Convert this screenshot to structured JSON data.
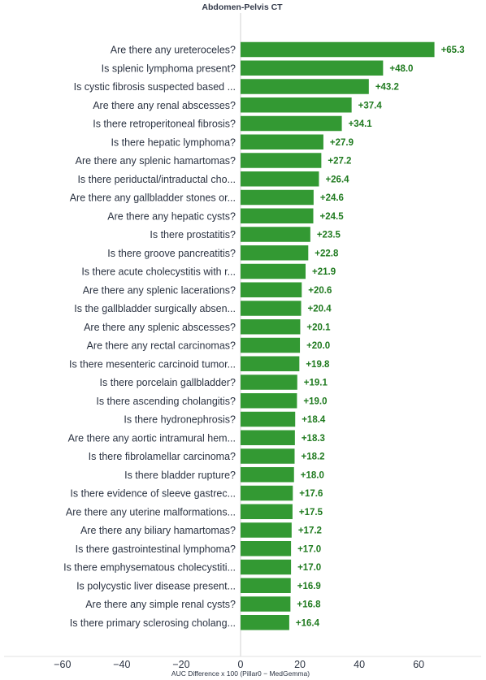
{
  "chart_data": {
    "type": "bar",
    "orientation": "horizontal",
    "title": "Abdomen-Pelvis CT",
    "xlabel": "AUC Difference x 100 (Pillar0 − MedGemma)",
    "xlim": [
      -75,
      75
    ],
    "xticks": [
      -60,
      -40,
      -20,
      0,
      20,
      40,
      60
    ],
    "xtick_labels": [
      "−60",
      "−40",
      "−20",
      "0",
      "20",
      "40",
      "60"
    ],
    "bar_color": "#339933",
    "label_color": "#1f7a1f",
    "categories": [
      "Are there any ureteroceles?",
      "Is splenic lymphoma present?",
      "Is cystic fibrosis suspected based ...",
      "Are there any renal abscesses?",
      "Is there retroperitoneal fibrosis?",
      "Is there hepatic lymphoma?",
      "Are there any splenic hamartomas?",
      "Is there periductal/intraductal cho...",
      "Are there any gallbladder stones or...",
      "Are there any hepatic cysts?",
      "Is there prostatitis?",
      "Is there groove pancreatitis?",
      "Is there acute cholecystitis with r...",
      "Are there any splenic lacerations?",
      "Is the gallbladder surgically absen...",
      "Are there any splenic abscesses?",
      "Are there any rectal carcinomas?",
      "Is there mesenteric carcinoid tumor...",
      "Is there porcelain gallbladder?",
      "Is there ascending cholangitis?",
      "Is there hydronephrosis?",
      "Are there any aortic intramural hem...",
      "Is there fibrolamellar carcinoma?",
      "Is there bladder rupture?",
      "Is there evidence of sleeve gastrec...",
      "Are there any uterine malformations...",
      "Are there any biliary hamartomas?",
      "Is there gastrointestinal lymphoma?",
      "Is there emphysematous cholecystiti...",
      "Is polycystic liver disease present...",
      "Are there any simple renal cysts?",
      "Is there primary sclerosing cholang..."
    ],
    "values": [
      65.3,
      48.0,
      43.2,
      37.4,
      34.1,
      27.9,
      27.2,
      26.4,
      24.6,
      24.5,
      23.5,
      22.8,
      21.9,
      20.6,
      20.4,
      20.1,
      20.0,
      19.8,
      19.1,
      19.0,
      18.4,
      18.3,
      18.2,
      18.0,
      17.6,
      17.5,
      17.2,
      17.0,
      17.0,
      16.9,
      16.8,
      16.4
    ],
    "value_labels": [
      "+65.3",
      "+48.0",
      "+43.2",
      "+37.4",
      "+34.1",
      "+27.9",
      "+27.2",
      "+26.4",
      "+24.6",
      "+24.5",
      "+23.5",
      "+22.8",
      "+21.9",
      "+20.6",
      "+20.4",
      "+20.1",
      "+20.0",
      "+19.8",
      "+19.1",
      "+19.0",
      "+18.4",
      "+18.3",
      "+18.2",
      "+18.0",
      "+17.6",
      "+17.5",
      "+17.2",
      "+17.0",
      "+17.0",
      "+16.9",
      "+16.8",
      "+16.4"
    ]
  }
}
